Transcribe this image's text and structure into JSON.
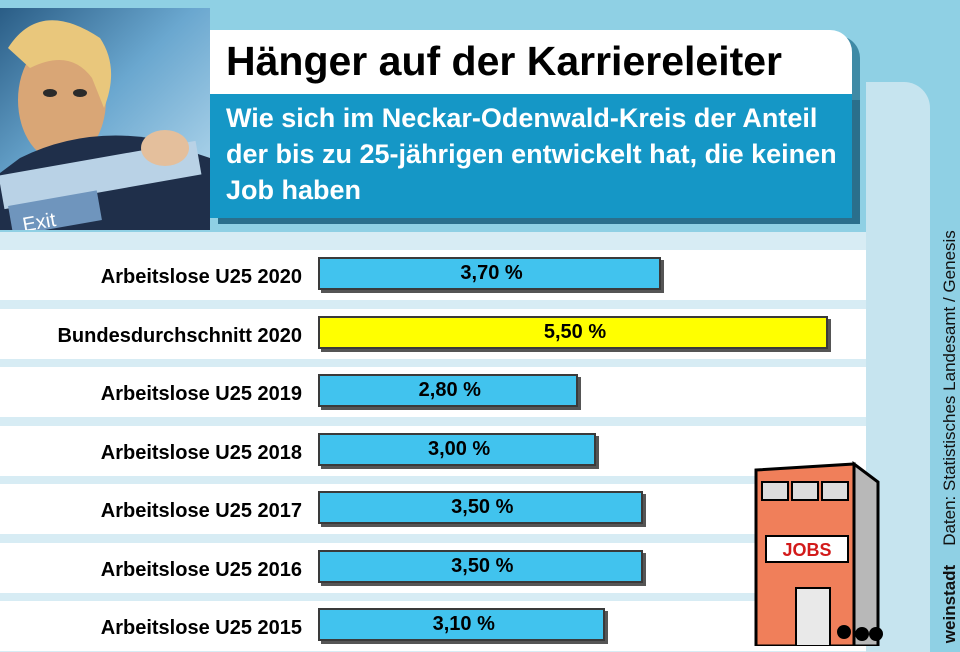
{
  "header": {
    "title": "Hänger auf der Karriereleiter",
    "subtitle": "Wie sich im Neckar-Odenwald-Kreis der Anteil der bis zu 25-jährigen entwickelt hat, die keinen Job haben"
  },
  "photo": {
    "sign_text": "Exit"
  },
  "source": "Daten: Statistisches Landesamt / Genesis",
  "credit": "weinstadt",
  "building": {
    "sign_text": "JOBS"
  },
  "colors": {
    "bar_default": "#41c3ee",
    "bar_highlight": "#ffff00"
  },
  "chart_data": {
    "type": "bar",
    "orientation": "horizontal",
    "categories": [
      "Arbeitslose U25 2020",
      "Bundesdurchschnitt 2020",
      "Arbeitslose U25 2019",
      "Arbeitslose U25 2018",
      "Arbeitslose U25 2017",
      "Arbeitslose U25 2016",
      "Arbeitslose U25 2015"
    ],
    "values": [
      3.7,
      5.5,
      2.8,
      3.0,
      3.5,
      3.5,
      3.1
    ],
    "value_labels": [
      "3,70 %",
      "5,50 %",
      "2,80 %",
      "3,00 %",
      "3,50 %",
      "3,50 %",
      "3,10 %"
    ],
    "highlight_index": 1,
    "unit": "%",
    "xlim": [
      0,
      5.5
    ],
    "grid": false
  }
}
